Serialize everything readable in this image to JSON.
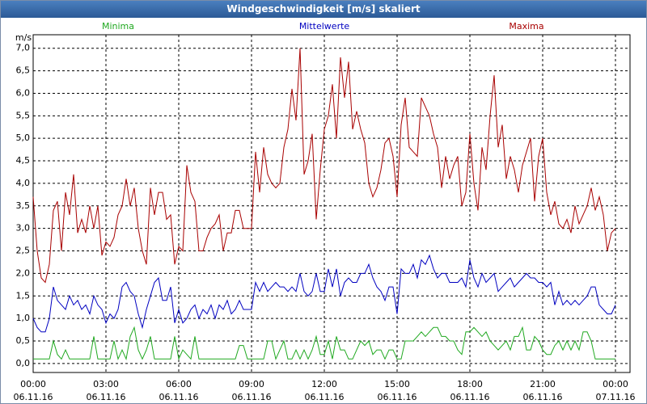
{
  "chart_data": {
    "type": "line",
    "title": "Windgeschwindigkeit [m/s] skaliert",
    "y_unit": "m/s",
    "x": [
      0,
      10,
      20,
      30,
      40,
      50,
      60,
      70,
      80,
      90,
      100,
      110,
      120,
      130,
      140,
      150,
      160,
      170,
      180,
      190,
      200,
      210,
      220,
      230,
      240,
      250,
      260,
      270,
      280,
      290,
      300,
      310,
      320,
      330,
      340,
      350,
      360,
      370,
      380,
      390,
      400,
      410,
      420,
      430,
      440,
      450,
      460,
      470,
      480,
      490,
      500,
      510,
      520,
      530,
      540,
      550,
      560,
      570,
      580,
      590,
      600,
      610,
      620,
      630,
      640,
      650,
      660,
      670,
      680,
      690,
      700,
      710,
      720,
      730,
      740,
      750,
      760,
      770,
      780,
      790,
      800,
      810,
      820,
      830,
      840,
      850,
      860,
      870,
      880,
      890,
      900,
      910,
      920,
      930,
      940,
      950,
      960,
      970,
      980,
      990,
      1000,
      1010,
      1020,
      1030,
      1040,
      1050,
      1060,
      1070,
      1080,
      1090,
      1100,
      1110,
      1120,
      1130,
      1140,
      1150,
      1160,
      1170,
      1180,
      1190,
      1200,
      1210,
      1220,
      1230,
      1240,
      1250,
      1260,
      1270,
      1280,
      1290,
      1300,
      1310,
      1320,
      1330,
      1340,
      1350,
      1360,
      1370,
      1380,
      1390,
      1400,
      1410,
      1420,
      1430,
      1440
    ],
    "series": [
      {
        "name": "Minima",
        "color": "#1fa81f",
        "values": [
          0.1,
          0.1,
          0.1,
          0.1,
          0.1,
          0.5,
          0.2,
          0.1,
          0.3,
          0.1,
          0.1,
          0.1,
          0.1,
          0.1,
          0.1,
          0.6,
          0.1,
          0.1,
          0.1,
          0.1,
          0.5,
          0.1,
          0.3,
          0.1,
          0.6,
          0.8,
          0.3,
          0.1,
          0.3,
          0.6,
          0.1,
          0.1,
          0.1,
          0.1,
          0.1,
          0.6,
          0.1,
          0.3,
          0.2,
          0.1,
          0.6,
          0.1,
          0.1,
          0.1,
          0.1,
          0.1,
          0.1,
          0.1,
          0.1,
          0.1,
          0.1,
          0.4,
          0.4,
          0.1,
          0.1,
          0.1,
          0.1,
          0.1,
          0.5,
          0.5,
          0.1,
          0.3,
          0.5,
          0.1,
          0.1,
          0.3,
          0.1,
          0.3,
          0.1,
          0.3,
          0.6,
          0.2,
          0.2,
          0.5,
          0.1,
          0.6,
          0.3,
          0.3,
          0.1,
          0.1,
          0.3,
          0.5,
          0.4,
          0.5,
          0.2,
          0.3,
          0.3,
          0.1,
          0.3,
          0.3,
          0.1,
          0.1,
          0.5,
          0.5,
          0.5,
          0.6,
          0.7,
          0.6,
          0.7,
          0.8,
          0.8,
          0.6,
          0.6,
          0.5,
          0.5,
          0.3,
          0.2,
          0.7,
          0.7,
          0.8,
          0.7,
          0.6,
          0.7,
          0.5,
          0.4,
          0.3,
          0.4,
          0.5,
          0.3,
          0.6,
          0.6,
          0.8,
          0.3,
          0.3,
          0.6,
          0.5,
          0.3,
          0.2,
          0.2,
          0.4,
          0.5,
          0.3,
          0.5,
          0.3,
          0.5,
          0.3,
          0.7,
          0.7,
          0.5,
          0.1,
          0.1,
          0.1,
          0.1,
          0.1,
          0.1
        ]
      },
      {
        "name": "Mittelwerte",
        "color": "#0000c0",
        "values": [
          1.0,
          0.8,
          0.7,
          0.7,
          1.0,
          1.7,
          1.4,
          1.3,
          1.2,
          1.5,
          1.3,
          1.4,
          1.2,
          1.3,
          1.1,
          1.5,
          1.3,
          1.2,
          0.9,
          1.1,
          1.0,
          1.2,
          1.7,
          1.8,
          1.6,
          1.5,
          1.1,
          0.8,
          1.2,
          1.5,
          1.8,
          1.9,
          1.4,
          1.4,
          1.7,
          0.9,
          1.2,
          0.9,
          1.0,
          1.2,
          1.3,
          1.0,
          1.2,
          1.1,
          1.3,
          1.0,
          1.3,
          1.2,
          1.4,
          1.1,
          1.2,
          1.4,
          1.2,
          1.2,
          1.2,
          1.8,
          1.6,
          1.8,
          1.6,
          1.7,
          1.8,
          1.7,
          1.7,
          1.6,
          1.7,
          1.6,
          2.0,
          1.6,
          1.5,
          1.6,
          2.0,
          1.6,
          1.6,
          2.1,
          1.7,
          2.1,
          1.5,
          1.8,
          1.9,
          1.8,
          1.8,
          2.0,
          2.0,
          2.2,
          1.9,
          1.7,
          1.6,
          1.4,
          1.7,
          1.7,
          1.1,
          2.1,
          2.0,
          2.0,
          2.2,
          1.9,
          2.3,
          2.2,
          2.4,
          2.1,
          1.9,
          2.0,
          2.0,
          1.8,
          1.8,
          1.8,
          1.9,
          1.7,
          2.3,
          1.9,
          1.7,
          2.0,
          1.8,
          1.9,
          2.0,
          1.6,
          1.7,
          1.8,
          1.9,
          1.7,
          1.8,
          1.9,
          2.0,
          1.9,
          1.9,
          1.8,
          1.8,
          1.7,
          1.8,
          1.3,
          1.6,
          1.3,
          1.4,
          1.3,
          1.4,
          1.3,
          1.4,
          1.5,
          1.7,
          1.7,
          1.3,
          1.2,
          1.1,
          1.1,
          1.3
        ]
      },
      {
        "name": "Maxima",
        "color": "#a80000",
        "values": [
          3.7,
          2.5,
          1.9,
          1.8,
          2.2,
          3.4,
          3.6,
          2.5,
          3.8,
          3.3,
          4.2,
          2.9,
          3.2,
          2.9,
          3.5,
          3.0,
          3.5,
          2.4,
          2.7,
          2.6,
          2.8,
          3.3,
          3.5,
          4.1,
          3.5,
          3.9,
          3.0,
          2.5,
          2.2,
          3.9,
          3.3,
          3.8,
          3.8,
          3.2,
          3.3,
          2.2,
          2.6,
          2.5,
          4.4,
          3.8,
          3.6,
          2.5,
          2.5,
          2.8,
          3.0,
          3.1,
          3.3,
          2.5,
          2.9,
          2.9,
          3.4,
          3.4,
          3.0,
          3.0,
          3.0,
          4.7,
          3.8,
          4.8,
          4.2,
          4.0,
          3.9,
          4.0,
          4.8,
          5.2,
          6.1,
          5.4,
          7.0,
          4.2,
          4.5,
          5.1,
          3.2,
          4.3,
          5.2,
          5.5,
          6.2,
          5.0,
          6.8,
          5.9,
          6.7,
          5.2,
          5.6,
          5.2,
          4.9,
          4.0,
          3.7,
          3.9,
          4.3,
          4.9,
          5.0,
          4.6,
          3.7,
          5.3,
          5.9,
          4.8,
          4.7,
          4.6,
          5.9,
          5.7,
          5.5,
          5.1,
          4.8,
          3.9,
          4.6,
          4.1,
          4.4,
          4.6,
          3.5,
          3.8,
          5.1,
          4.0,
          3.4,
          4.8,
          4.3,
          5.5,
          6.4,
          4.8,
          5.3,
          4.1,
          4.6,
          4.3,
          3.8,
          4.4,
          4.7,
          5.0,
          3.6,
          4.6,
          5.0,
          3.8,
          3.3,
          3.6,
          3.1,
          3.0,
          3.2,
          2.9,
          3.5,
          3.1,
          3.3,
          3.5,
          3.9,
          3.4,
          3.7,
          3.3,
          2.5,
          2.9,
          3.0
        ]
      }
    ],
    "xlim": [
      0,
      1476
    ],
    "xticks": [
      {
        "value": 0,
        "label": "00:00"
      },
      {
        "value": 180,
        "label": "03:00"
      },
      {
        "value": 360,
        "label": "06:00"
      },
      {
        "value": 540,
        "label": "09:00"
      },
      {
        "value": 720,
        "label": "12:00"
      },
      {
        "value": 900,
        "label": "15:00"
      },
      {
        "value": 1080,
        "label": "18:00"
      },
      {
        "value": 1260,
        "label": "21:00"
      },
      {
        "value": 1440,
        "label": "00:00"
      }
    ],
    "xtick_dates": [
      "06.11.16",
      "06.11.16",
      "06.11.16",
      "06.11.16",
      "06.11.16",
      "06.11.16",
      "06.11.16",
      "06.11.16",
      "07.11.16"
    ],
    "ylim": [
      -0.2,
      7.3
    ],
    "yticks": [
      {
        "value": 0,
        "label": "0,0"
      },
      {
        "value": 0.5,
        "label": "0,5"
      },
      {
        "value": 1,
        "label": "1,0"
      },
      {
        "value": 1.5,
        "label": "1,5"
      },
      {
        "value": 2,
        "label": "2,0"
      },
      {
        "value": 2.5,
        "label": "2,5"
      },
      {
        "value": 3,
        "label": "3,0"
      },
      {
        "value": 3.5,
        "label": "3,5"
      },
      {
        "value": 4,
        "label": "4,0"
      },
      {
        "value": 4.5,
        "label": "4,5"
      },
      {
        "value": 5,
        "label": "5,0"
      },
      {
        "value": 5.5,
        "label": "5,5"
      },
      {
        "value": 6,
        "label": "6,0"
      },
      {
        "value": 6.5,
        "label": "6,5"
      },
      {
        "value": 7,
        "label": "7,0"
      }
    ],
    "grid": true
  }
}
